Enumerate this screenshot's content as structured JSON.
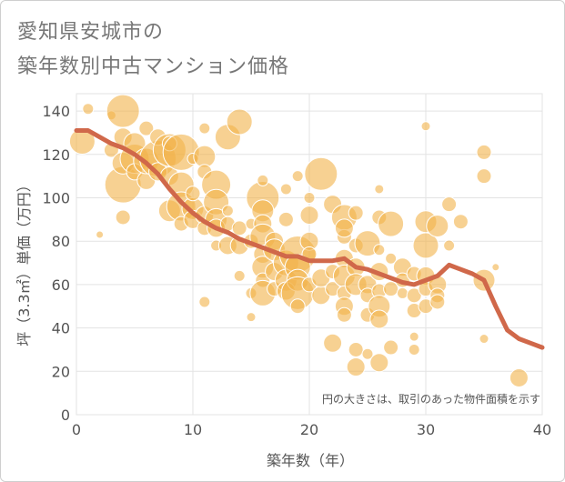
{
  "title_lines": [
    "愛知県安城市の",
    "築年数別中古マンション価格"
  ],
  "chart_data": {
    "type": "scatter",
    "xlabel": "築年数（年）",
    "ylabel": "坪（3.3㎡）単価（万円）",
    "xlim": [
      0,
      40
    ],
    "ylim": [
      0,
      148
    ],
    "xticks": [
      0,
      10,
      20,
      30,
      40
    ],
    "yticks": [
      0,
      20,
      40,
      60,
      80,
      100,
      120,
      140
    ],
    "grid": true,
    "note": "円の大きさは、取引のあった物件面積を示す",
    "colors": {
      "bubble": "#f2b34a",
      "line": "#d0684a",
      "grid": "#e3e3e3"
    },
    "points": [
      [
        0.5,
        126,
        14
      ],
      [
        1,
        141,
        6
      ],
      [
        2,
        83,
        4
      ],
      [
        3,
        122,
        8
      ],
      [
        3,
        138,
        5
      ],
      [
        4,
        140,
        18
      ],
      [
        4,
        106,
        20
      ],
      [
        4,
        91,
        8
      ],
      [
        4,
        128,
        10
      ],
      [
        4,
        116,
        12
      ],
      [
        5,
        118,
        16
      ],
      [
        5,
        125,
        12
      ],
      [
        5,
        112,
        9
      ],
      [
        6,
        132,
        8
      ],
      [
        6,
        108,
        10
      ],
      [
        6,
        117,
        14
      ],
      [
        7,
        118,
        20
      ],
      [
        7,
        128,
        9
      ],
      [
        7,
        112,
        10
      ],
      [
        8,
        94,
        12
      ],
      [
        8,
        122,
        18
      ],
      [
        8,
        110,
        10
      ],
      [
        8,
        125,
        8
      ],
      [
        9,
        121,
        20
      ],
      [
        9,
        106,
        14
      ],
      [
        9,
        96,
        16
      ],
      [
        9,
        88,
        8
      ],
      [
        10,
        95,
        12
      ],
      [
        10,
        90,
        10
      ],
      [
        10,
        102,
        8
      ],
      [
        10,
        118,
        6
      ],
      [
        11,
        92,
        10
      ],
      [
        11,
        119,
        12
      ],
      [
        11,
        112,
        8
      ],
      [
        11,
        132,
        6
      ],
      [
        11,
        86,
        8
      ],
      [
        11,
        52,
        6
      ],
      [
        12,
        106,
        16
      ],
      [
        12,
        98,
        14
      ],
      [
        12,
        90,
        12
      ],
      [
        12,
        86,
        10
      ],
      [
        12,
        78,
        6
      ],
      [
        13,
        128,
        14
      ],
      [
        13,
        88,
        8
      ],
      [
        13,
        78,
        10
      ],
      [
        13,
        94,
        6
      ],
      [
        14,
        135,
        14
      ],
      [
        14,
        86,
        8
      ],
      [
        14,
        78,
        10
      ],
      [
        14,
        64,
        6
      ],
      [
        15,
        80,
        8
      ],
      [
        15,
        88,
        6
      ],
      [
        15,
        56,
        6
      ],
      [
        15,
        45,
        5
      ],
      [
        16,
        100,
        18
      ],
      [
        16,
        94,
        12
      ],
      [
        16,
        88,
        10
      ],
      [
        16,
        82,
        14
      ],
      [
        16,
        74,
        10
      ],
      [
        16,
        68,
        12
      ],
      [
        16,
        62,
        8
      ],
      [
        16,
        56,
        14
      ],
      [
        16,
        108,
        6
      ],
      [
        17,
        80,
        10
      ],
      [
        17,
        76,
        12
      ],
      [
        17,
        58,
        8
      ],
      [
        17,
        66,
        10
      ],
      [
        18,
        90,
        8
      ],
      [
        18,
        70,
        14
      ],
      [
        18,
        62,
        12
      ],
      [
        18,
        57,
        10
      ],
      [
        18,
        104,
        6
      ],
      [
        19,
        74,
        20
      ],
      [
        19,
        68,
        14
      ],
      [
        19,
        62,
        12
      ],
      [
        19,
        56,
        18
      ],
      [
        19,
        50,
        8
      ],
      [
        19,
        110,
        6
      ],
      [
        20,
        80,
        10
      ],
      [
        20,
        92,
        10
      ],
      [
        20,
        60,
        8
      ],
      [
        20,
        74,
        8
      ],
      [
        20,
        100,
        6
      ],
      [
        21,
        111,
        18
      ],
      [
        21,
        55,
        10
      ],
      [
        21,
        63,
        10
      ],
      [
        22,
        66,
        8
      ],
      [
        22,
        97,
        10
      ],
      [
        22,
        33,
        10
      ],
      [
        22,
        58,
        8
      ],
      [
        23,
        91,
        14
      ],
      [
        23,
        82,
        8
      ],
      [
        23,
        72,
        10
      ],
      [
        23,
        64,
        12
      ],
      [
        23,
        56,
        8
      ],
      [
        23,
        50,
        10
      ],
      [
        23,
        46,
        8
      ],
      [
        23,
        86,
        10
      ],
      [
        24,
        93,
        8
      ],
      [
        24,
        78,
        8
      ],
      [
        24,
        68,
        10
      ],
      [
        24,
        60,
        12
      ],
      [
        24,
        30,
        8
      ],
      [
        24,
        22,
        10
      ],
      [
        25,
        79,
        14
      ],
      [
        25,
        60,
        10
      ],
      [
        25,
        55,
        8
      ],
      [
        25,
        46,
        8
      ],
      [
        25,
        28,
        6
      ],
      [
        26,
        91,
        8
      ],
      [
        26,
        104,
        5
      ],
      [
        26,
        76,
        6
      ],
      [
        26,
        66,
        10
      ],
      [
        26,
        57,
        8
      ],
      [
        26,
        50,
        12
      ],
      [
        26,
        44,
        10
      ],
      [
        26,
        24,
        10
      ],
      [
        27,
        88,
        14
      ],
      [
        27,
        72,
        6
      ],
      [
        27,
        58,
        8
      ],
      [
        27,
        31,
        8
      ],
      [
        28,
        68,
        10
      ],
      [
        28,
        62,
        8
      ],
      [
        28,
        56,
        6
      ],
      [
        29,
        65,
        8
      ],
      [
        29,
        55,
        8
      ],
      [
        29,
        48,
        8
      ],
      [
        29,
        36,
        5
      ],
      [
        29,
        30,
        6
      ],
      [
        30,
        89,
        12
      ],
      [
        30,
        78,
        14
      ],
      [
        30,
        64,
        10
      ],
      [
        30,
        58,
        8
      ],
      [
        30,
        50,
        8
      ],
      [
        30,
        133,
        5
      ],
      [
        31,
        87,
        12
      ],
      [
        31,
        60,
        10
      ],
      [
        31,
        55,
        8
      ],
      [
        31,
        52,
        8
      ],
      [
        32,
        97,
        8
      ],
      [
        32,
        78,
        6
      ],
      [
        33,
        89,
        8
      ],
      [
        35,
        121,
        8
      ],
      [
        35,
        110,
        8
      ],
      [
        35,
        62,
        12
      ],
      [
        35,
        35,
        5
      ],
      [
        36,
        68,
        4
      ],
      [
        38,
        17,
        10
      ]
    ],
    "trend": {
      "x": [
        0,
        1,
        2,
        3,
        4,
        5,
        6,
        7,
        8,
        9,
        10,
        11,
        12,
        13,
        14,
        15,
        16,
        17,
        18,
        19,
        20,
        21,
        22,
        23,
        24,
        25,
        26,
        27,
        28,
        29,
        30,
        31,
        32,
        33,
        34,
        35,
        36,
        37,
        38,
        39,
        40
      ],
      "y": [
        131,
        131,
        128,
        125,
        123,
        120,
        116,
        111,
        104,
        98,
        93,
        89,
        86,
        84,
        81,
        79,
        77,
        75,
        73,
        73,
        71,
        71,
        71,
        72,
        68,
        67,
        65,
        63,
        61,
        60,
        62,
        64,
        69,
        67,
        65,
        62,
        50,
        39,
        35,
        33,
        31
      ]
    }
  }
}
